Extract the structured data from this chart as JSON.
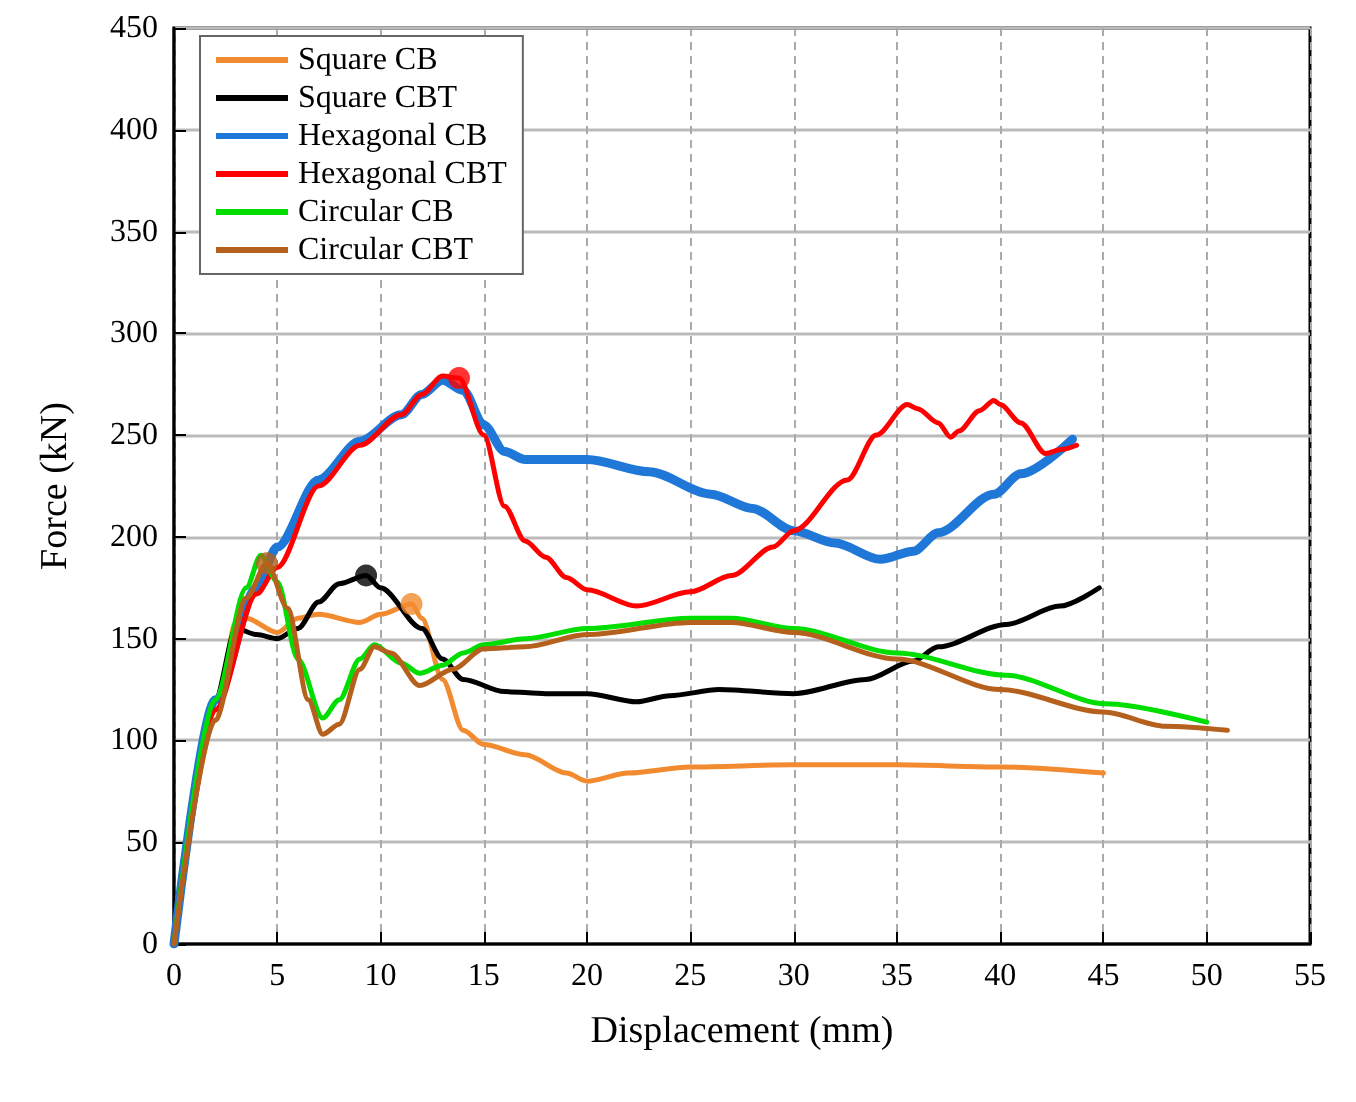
{
  "chart_data": {
    "type": "line",
    "xlabel": "Displacement (mm)",
    "ylabel": "Force (kN)",
    "xlim": [
      0,
      55
    ],
    "xticks": [
      0,
      5,
      10,
      15,
      20,
      25,
      30,
      35,
      40,
      45,
      50,
      55
    ],
    "ylim": [
      0,
      450
    ],
    "yticks": [
      0,
      50,
      100,
      150,
      200,
      250,
      300,
      350,
      400,
      450
    ],
    "grid": true,
    "legend": "top left",
    "line_style": "solid",
    "series": [
      {
        "name": "Square CB",
        "color": "#f28b30",
        "x": [
          0,
          2,
          3,
          3.5,
          5,
          6,
          7,
          9,
          10,
          11.5,
          12,
          13,
          14,
          15,
          17,
          19,
          20,
          22,
          25,
          30,
          35,
          40,
          45
        ],
        "values": [
          0,
          110,
          158,
          160,
          153,
          160,
          162,
          158,
          162,
          167,
          160,
          130,
          105,
          98,
          93,
          84,
          80,
          84,
          87,
          88,
          88,
          87,
          84
        ]
      },
      {
        "name": "Square CBT",
        "color": "#000000",
        "x": [
          0,
          2,
          3,
          4,
          5,
          6,
          7,
          8,
          9.3,
          10,
          12,
          13,
          14,
          16,
          18,
          20,
          22.4,
          24,
          26.4,
          30,
          33.5,
          35.8,
          37,
          40.3,
          42.9,
          44.8
        ],
        "values": [
          0,
          120,
          155,
          152,
          150,
          155,
          168,
          177,
          181,
          175,
          155,
          140,
          130,
          124,
          123,
          123,
          119,
          122,
          125,
          123,
          130,
          139,
          146,
          157,
          166,
          175
        ]
      },
      {
        "name": "Hexagonal CB",
        "color": "#1f78d8",
        "x": [
          0,
          2,
          4,
          5,
          7,
          9,
          11,
          12,
          13,
          14,
          15,
          16,
          17,
          20,
          23,
          26,
          28,
          30,
          32,
          34.2,
          35.8,
          37,
          39.7,
          41,
          43.5
        ],
        "values": [
          0,
          120,
          175,
          195,
          228,
          247,
          260,
          270,
          277,
          272,
          255,
          242,
          238,
          238,
          232,
          221,
          214,
          203,
          197,
          189,
          193,
          202,
          221,
          231,
          248
        ]
      },
      {
        "name": "Hexagonal CBT",
        "color": "#ff0000",
        "x": [
          0,
          2,
          4,
          5,
          7,
          9,
          11,
          12,
          13,
          13.8,
          15,
          16,
          17,
          18,
          19,
          20,
          22.4,
          25,
          27,
          29,
          30,
          32.6,
          34,
          35.5,
          36,
          37,
          37.6,
          38,
          39,
          39.7,
          40,
          41,
          42.2,
          43,
          43.7
        ],
        "values": [
          0,
          115,
          172,
          185,
          225,
          245,
          260,
          270,
          279,
          278,
          250,
          215,
          198,
          190,
          180,
          174,
          166,
          173,
          181,
          195,
          203,
          228,
          250,
          265,
          263,
          256,
          249,
          252,
          262,
          267,
          265,
          256,
          241,
          243,
          245
        ]
      },
      {
        "name": "Circular CB",
        "color": "#00dd00",
        "x": [
          0,
          2,
          3.5,
          4.2,
          5,
          6,
          7.2,
          8,
          9,
          9.7,
          11,
          11.9,
          13,
          14,
          15,
          17,
          20,
          25,
          27,
          30,
          35,
          40.3,
          45.1,
          50
        ],
        "values": [
          0,
          120,
          175,
          191,
          178,
          140,
          111,
          120,
          140,
          147,
          138,
          133,
          137,
          143,
          147,
          150,
          155,
          160,
          160,
          155,
          143,
          132,
          118,
          109
        ]
      },
      {
        "name": "Circular CBT",
        "color": "#b5601c",
        "x": [
          0,
          2,
          3.5,
          4.5,
          5.5,
          6.5,
          7.2,
          8,
          9,
          9.7,
          10.5,
          11.9,
          13.5,
          15,
          17,
          20,
          25,
          27,
          30,
          35,
          40,
          45,
          48,
          51
        ],
        "values": [
          0,
          110,
          170,
          187,
          165,
          120,
          103,
          108,
          135,
          146,
          143,
          127,
          135,
          145,
          146,
          152,
          158,
          158,
          153,
          140,
          125,
          114,
          107,
          105
        ]
      },
      {
        "type": "scatter",
        "color": "#f28b30",
        "x": [
          11.5
        ],
        "values": [
          167
        ]
      },
      {
        "type": "scatter",
        "color": "#000000",
        "x": [
          9.3
        ],
        "values": [
          181
        ]
      },
      {
        "type": "scatter",
        "color": "#ff0000",
        "x": [
          13.8
        ],
        "values": [
          278
        ]
      },
      {
        "type": "scatter",
        "color": "#b5601c",
        "x": [
          4.5
        ],
        "values": [
          187
        ]
      }
    ]
  }
}
